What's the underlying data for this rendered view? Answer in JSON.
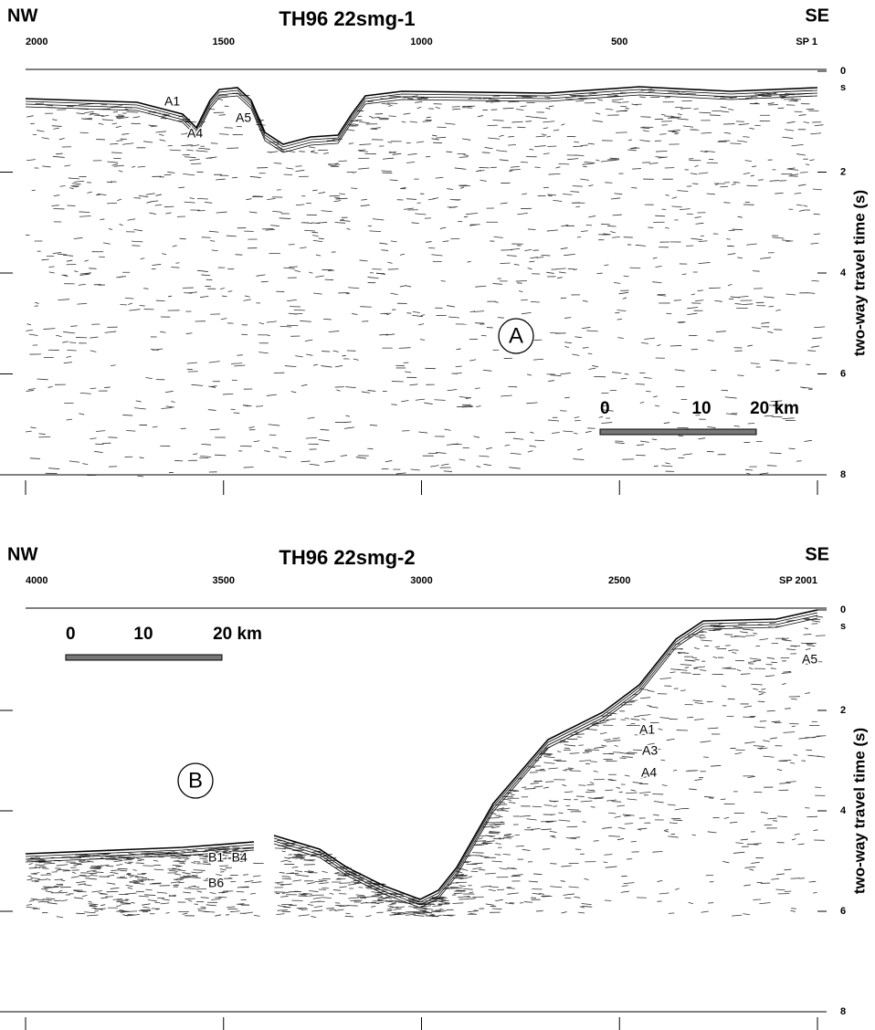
{
  "panels": [
    {
      "title": "TH96 22smg-1",
      "left_direction": "NW",
      "right_direction": "SE",
      "top_ticks": [
        2000,
        1500,
        1000,
        500,
        "SP 1"
      ],
      "y_ticks": [
        0,
        2,
        4,
        6,
        8
      ],
      "y_unit": "s",
      "y_axis_label": "two-way travel time (s)",
      "panel_label": "A",
      "scale_bar": [
        0,
        10,
        "20 km"
      ],
      "annotations": [
        "A1",
        "A4",
        "A5"
      ]
    },
    {
      "title": "TH96 22smg-2",
      "left_direction": "NW",
      "right_direction": "SE",
      "top_ticks": [
        4000,
        3500,
        3000,
        2500,
        "SP 2001"
      ],
      "y_ticks": [
        0,
        2,
        4,
        6,
        8
      ],
      "y_unit": "s",
      "y_axis_label": "two-way travel time (s)",
      "panel_label": "B",
      "scale_bar": [
        0,
        10,
        "20 km"
      ],
      "annotations": [
        "A1",
        "A3",
        "A4",
        "A5",
        "B1 -B4",
        "B6"
      ]
    }
  ]
}
